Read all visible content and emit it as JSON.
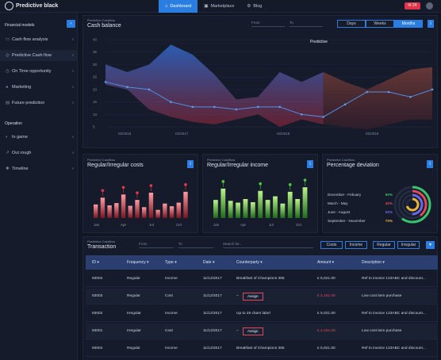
{
  "app": {
    "name": "Predictive black"
  },
  "nav": [
    {
      "label": "Dashboard",
      "icon": "home-icon",
      "active": true
    },
    {
      "label": "Marketplace",
      "icon": "cart-icon",
      "active": false
    },
    {
      "label": "Blog",
      "icon": "gear-icon",
      "active": false
    }
  ],
  "notifications": {
    "count": "24"
  },
  "sidebar": {
    "section1": "Financial models",
    "section2": "Operation",
    "items1": [
      {
        "label": "Cash flow analysis",
        "icon": "folder-icon"
      },
      {
        "label": "Predictive Cash flow",
        "icon": "forecast-icon"
      },
      {
        "label": "On Time opportunity",
        "icon": "clock-icon"
      },
      {
        "label": "Marketing",
        "icon": "megaphone-icon"
      },
      {
        "label": "Future prediction",
        "icon": "document-icon"
      }
    ],
    "items2": [
      {
        "label": "In game",
        "icon": "game-icon"
      },
      {
        "label": "Out rough",
        "icon": "arrow-icon"
      },
      {
        "label": "Timeline",
        "icon": "timeline-icon"
      }
    ]
  },
  "cashbalance": {
    "subtitle": "Predictive Cashflow",
    "title": "Cash balance",
    "from_placeholder": "From",
    "to_placeholder": "To",
    "segments": [
      "Days",
      "Weeks",
      "Months"
    ],
    "active_segment": "Months",
    "predictive_label": "Predictive"
  },
  "chart_data": {
    "type": "line",
    "yticks": [
      "40",
      "35",
      "30",
      "25",
      "20",
      "15",
      "10",
      "5"
    ],
    "ylim": [
      5,
      40
    ],
    "xticks": [
      "02/2016",
      "02/2017",
      "02/2018",
      "02/2019"
    ],
    "line": [
      23,
      21,
      20,
      15,
      13,
      13,
      12,
      13,
      13,
      10,
      9,
      14,
      19,
      19,
      17,
      20
    ],
    "band_upper": [
      30,
      27,
      30,
      38,
      34,
      26,
      16,
      17,
      27,
      23,
      27,
      23,
      20,
      24,
      28,
      29
    ],
    "band_lower": [
      22,
      20,
      12,
      9,
      7,
      6,
      8,
      10,
      5,
      8,
      6,
      5,
      4,
      6,
      8,
      8
    ]
  },
  "costs": {
    "subtitle": "Predictive Cashflow",
    "title": "Regular/Irregular costs",
    "months": [
      "Jan",
      "Apr",
      "Jul",
      "Oct"
    ],
    "values": [
      30,
      45,
      28,
      33,
      52,
      27,
      40,
      24,
      56,
      18,
      32,
      26,
      34,
      58
    ]
  },
  "income": {
    "subtitle": "Predictive Cashflow",
    "title": "Regular/Irregular income",
    "months": [
      "Jan",
      "Apr",
      "Jul",
      "Oct"
    ],
    "values": [
      40,
      65,
      38,
      34,
      42,
      35,
      60,
      40,
      48,
      32,
      58,
      42,
      68
    ]
  },
  "deviation": {
    "subtitle": "Predictive Cashflow",
    "title": "Percentage deviation",
    "rows": [
      {
        "label": "December - Febuary",
        "value": "60%",
        "color": "#37c46b"
      },
      {
        "label": "March - May",
        "value": "40%",
        "color": "#e24a5a"
      },
      {
        "label": "June - August",
        "value": "50%",
        "color": "#6a68e8"
      },
      {
        "label": "September - November",
        "value": "70%",
        "color": "#e8b43a"
      }
    ]
  },
  "transaction": {
    "subtitle": "Predictive Cashflow",
    "title": "Transaction",
    "from_placeholder": "From",
    "to_placeholder": "To",
    "search_placeholder": "Search for...",
    "buttons": [
      "Costs",
      "Income",
      "Regular",
      "Irregular"
    ],
    "headers": [
      "ID",
      "Frequency",
      "Type",
      "Date",
      "Counterparty",
      "Amount",
      "Description"
    ],
    "assign_label": "Assign",
    "rows": [
      {
        "id": "93004",
        "freq": "Regular",
        "type": "Income",
        "date": "11/12/2017",
        "party": "Breakfast of Champions 365",
        "amount": "£ 5,021.00",
        "desc": "Ref to invoice 123ABC and discount...",
        "red": false,
        "assign": false
      },
      {
        "id": "93003",
        "freq": "Regular",
        "type": "Cost",
        "date": "11/12/2017",
        "party": "",
        "amount": "£ 2,151.00",
        "desc": "Low cost item purchase",
        "red": true,
        "assign": true
      },
      {
        "id": "93002",
        "freq": "Irregular",
        "type": "Income",
        "date": "11/12/2017",
        "party": "Up to 25 chars label",
        "amount": "£ 5,021.00",
        "desc": "Ref to invoice 123ABC and discount...",
        "red": false,
        "assign": false
      },
      {
        "id": "93001",
        "freq": "Irregular",
        "type": "Cost",
        "date": "11/12/2017",
        "party": "",
        "amount": "£ 2,151.00",
        "desc": "Low cost item purchase",
        "red": true,
        "assign": true
      },
      {
        "id": "93004",
        "freq": "Regular",
        "type": "Income",
        "date": "11/12/2017",
        "party": "Breakfast of Champions 365",
        "amount": "£ 5,021.00",
        "desc": "Ref to invoice 123ABC and discount...",
        "red": false,
        "assign": false
      }
    ]
  }
}
